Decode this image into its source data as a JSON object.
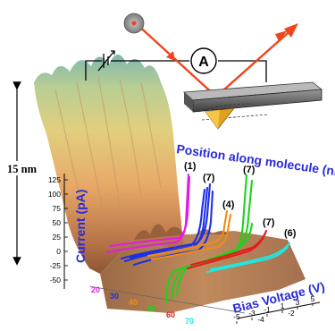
{
  "scale_label": "15 nm",
  "circuit": {
    "ammeter_symbol": "A"
  },
  "axes": {
    "current_label": "Current (pA)",
    "position_label": "Position along molecule (nm)",
    "bias_label": "Bias Voltage (V)",
    "current_ticks": [
      "125",
      "100",
      "75",
      "50",
      "25",
      "0",
      "-25",
      "-50"
    ],
    "position_ticks": [
      "20",
      "30",
      "40",
      "50",
      "60",
      "70"
    ],
    "bias_ticks": [
      "5",
      "3",
      "1",
      "-1",
      "-3",
      "-5"
    ],
    "bias_minor_ticks": [
      "-2",
      "-4"
    ]
  },
  "curve_labels": [
    "(1)",
    "(7)",
    "(7)",
    "(4)",
    "(7)",
    "(6)"
  ],
  "colors": {
    "laser": "#f0441c",
    "curve_1": "#e01ce8",
    "curve_2": "#1e2fe6",
    "curve_3": "#1ed21e",
    "curve_4": "#f08b14",
    "curve_5": "#e41c1c",
    "curve_6": "#1ee8e0",
    "label_blue": "#2a2ad8"
  }
}
